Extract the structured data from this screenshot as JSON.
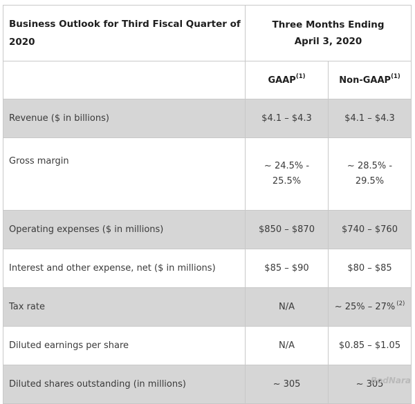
{
  "header": {
    "left_title_line1": "Business Outlook for Third Fiscal Quarter of",
    "left_title_line2": "2020",
    "period_line1": "Three Months Ending",
    "period_line2": "April 3, 2020"
  },
  "columns": {
    "gaap": "GAAP",
    "gaap_note": "(1)",
    "non_gaap": "Non-GAAP",
    "non_gaap_note": "(1)"
  },
  "rows": [
    {
      "label": "Revenue ($ in billions)",
      "gaap": "$4.1 – $4.3",
      "non_gaap": "$4.1 – $4.3"
    },
    {
      "label": "Gross margin",
      "gaap_line1": "~ 24.5% -",
      "gaap_line2": "25.5%",
      "non_gaap_line1": "~ 28.5% -",
      "non_gaap_line2": "29.5%"
    },
    {
      "label": "Operating expenses ($ in millions)",
      "gaap": "$850 – $870",
      "non_gaap": "$740 – $760"
    },
    {
      "label": "Interest and other expense, net ($ in millions)",
      "gaap": "$85 – $90",
      "non_gaap": "$80 – $85"
    },
    {
      "label": "Tax rate",
      "gaap": "N/A",
      "non_gaap": "~ 25% – 27%",
      "non_gaap_note": "(2)"
    },
    {
      "label": "Diluted earnings per share",
      "gaap": "N/A",
      "non_gaap": "$0.85 – $1.05"
    },
    {
      "label": "Diluted shares outstanding (in millions)",
      "gaap": "~ 305",
      "non_gaap": "~ 305"
    }
  ],
  "watermark": "BodNara",
  "colors": {
    "shaded_row": "#d6d6d6",
    "border": "#c8c8c8"
  }
}
